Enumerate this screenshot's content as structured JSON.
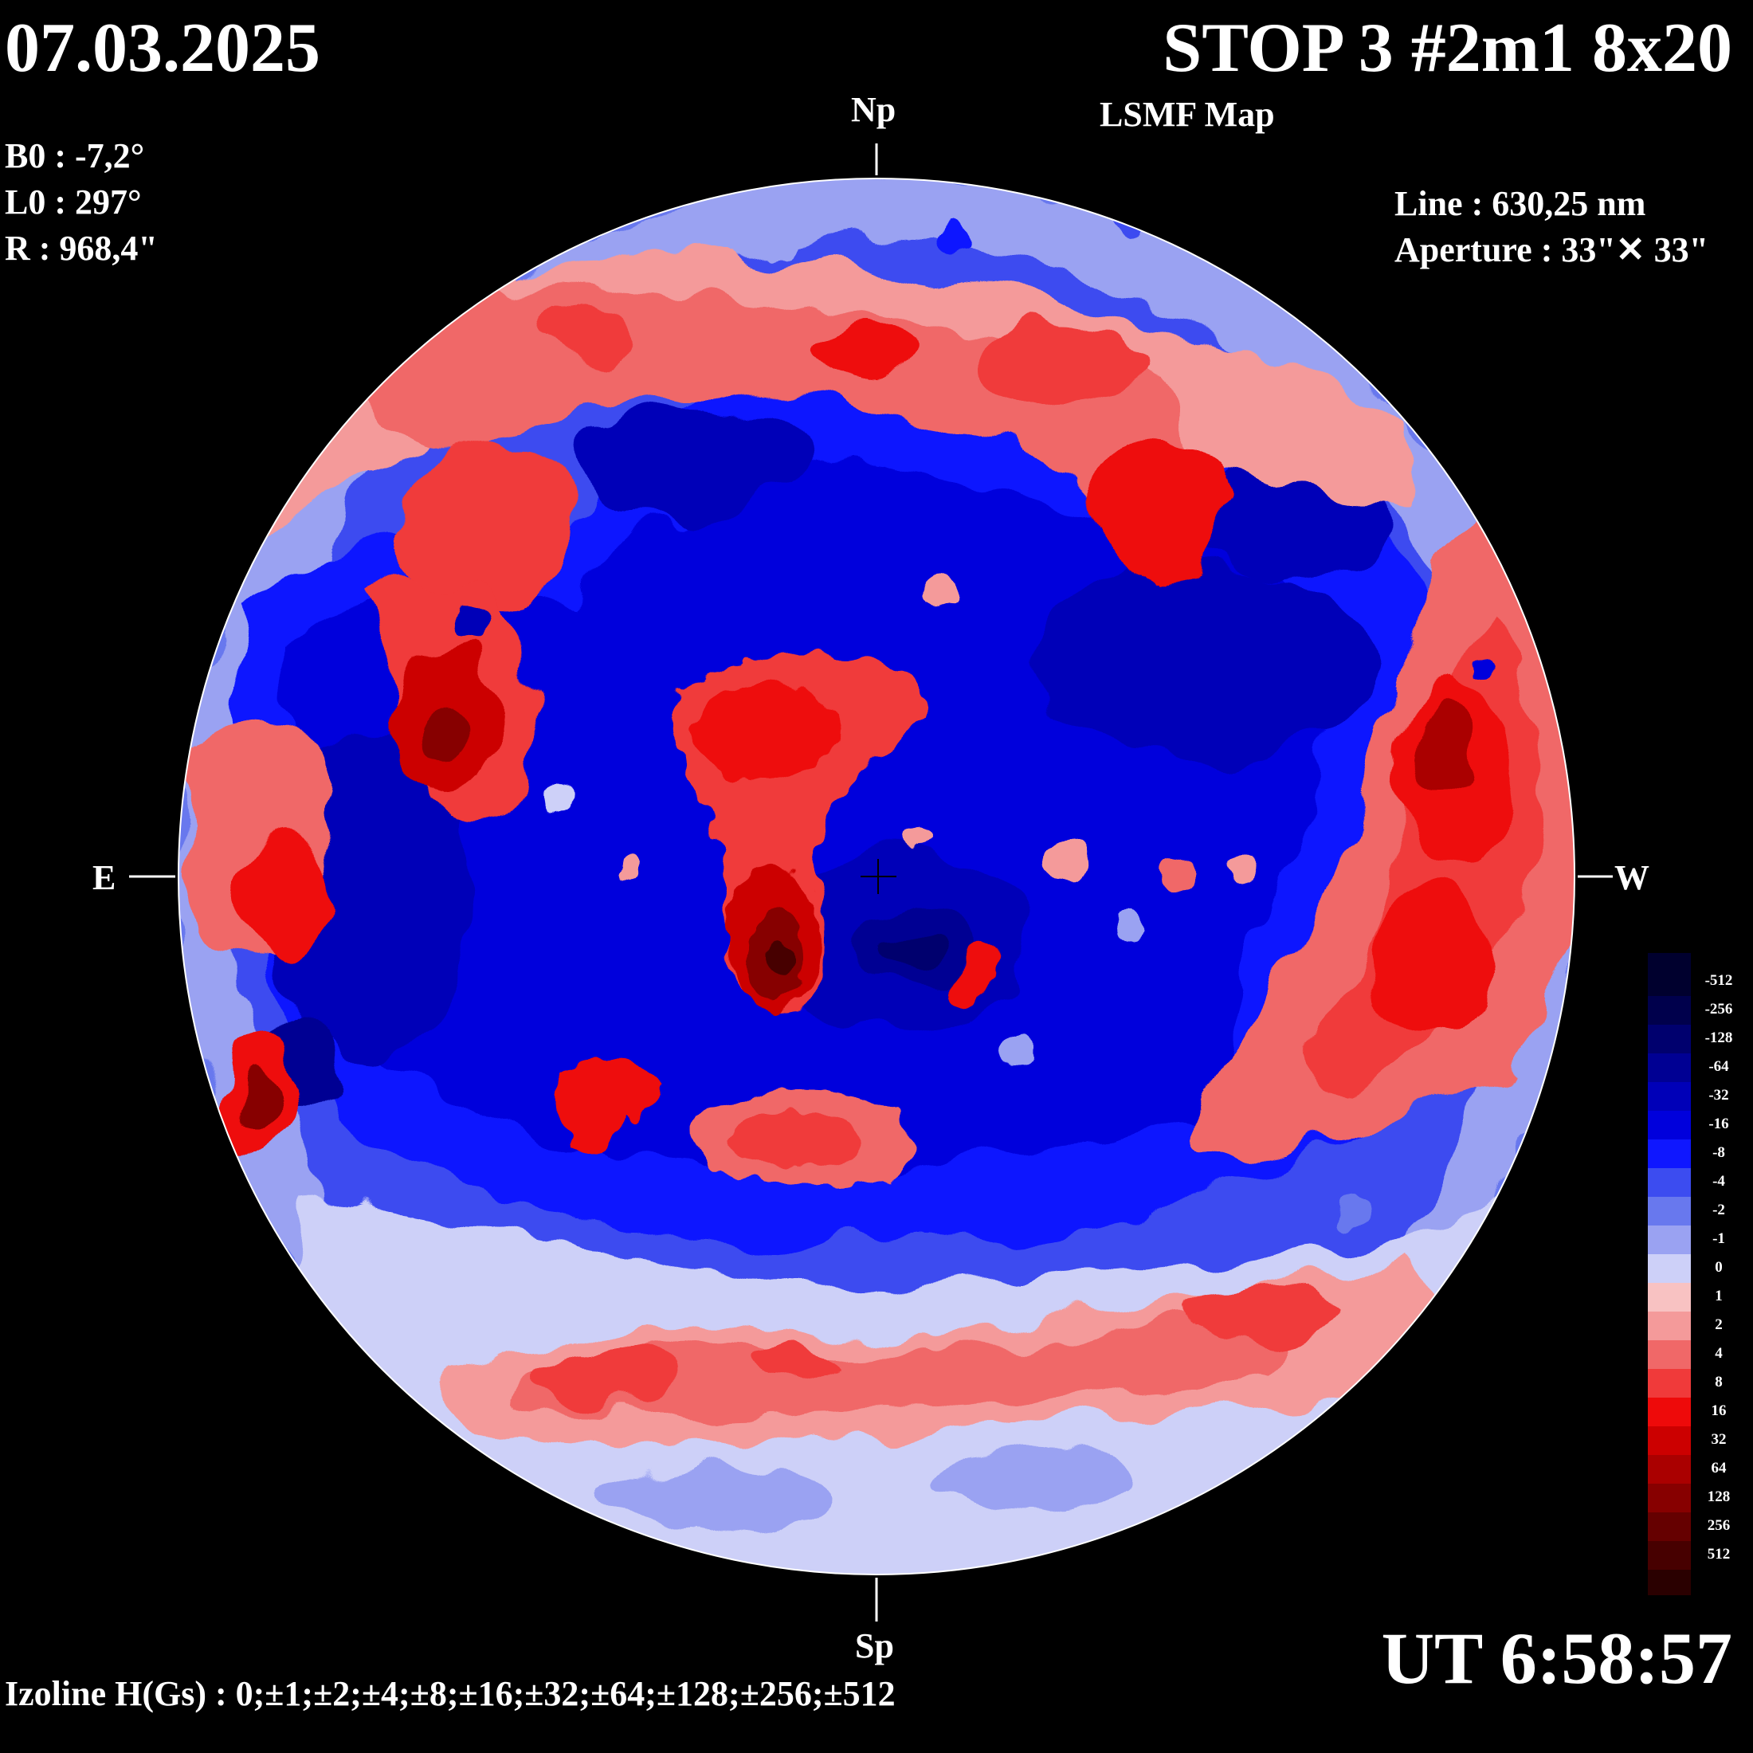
{
  "header": {
    "date": "07.03.2025",
    "title": "STOP 3 #2m1 8x20",
    "subtitle": "LSMF  Map"
  },
  "params": {
    "b0": "B0 : -7,2°",
    "l0": "L0 : 297°",
    "r": "R  : 968,4\""
  },
  "instrument": {
    "line": "Line :  630,25 nm",
    "aperture": "Aperture : 33\"✕ 33\""
  },
  "axes": {
    "north": "Np",
    "south": "Sp",
    "east": "E",
    "west": "W"
  },
  "time": "UT 6:58:57",
  "izoline": "Izoline H(Gs) : 0;±1;±2;±4;±8;±16;±32;±64;±128;±256;±512",
  "colorbar": {
    "levels": [
      {
        "label": "-512",
        "color": "#00002e"
      },
      {
        "label": "-256",
        "color": "#00004c"
      },
      {
        "label": "-128",
        "color": "#00006e"
      },
      {
        "label": "-64",
        "color": "#000093"
      },
      {
        "label": "-32",
        "color": "#0000b8"
      },
      {
        "label": "-16",
        "color": "#0000dc"
      },
      {
        "label": "-8",
        "color": "#0f17ff"
      },
      {
        "label": "-4",
        "color": "#3c4cf0"
      },
      {
        "label": "-2",
        "color": "#6878ee"
      },
      {
        "label": "-1",
        "color": "#9aa2f2"
      },
      {
        "label": "0",
        "color": "#cdd0f8"
      },
      {
        "label": "1",
        "color": "#f8c2c2"
      },
      {
        "label": "2",
        "color": "#f49a9a"
      },
      {
        "label": "4",
        "color": "#f06868"
      },
      {
        "label": "8",
        "color": "#f03a3a"
      },
      {
        "label": "16",
        "color": "#ee0a0a"
      },
      {
        "label": "32",
        "color": "#cc0000"
      },
      {
        "label": "64",
        "color": "#aa0000"
      },
      {
        "label": "128",
        "color": "#870000"
      },
      {
        "label": "256",
        "color": "#650000"
      },
      {
        "label": "512",
        "color": "#470000"
      }
    ],
    "bottom_color": "#2a0000"
  }
}
